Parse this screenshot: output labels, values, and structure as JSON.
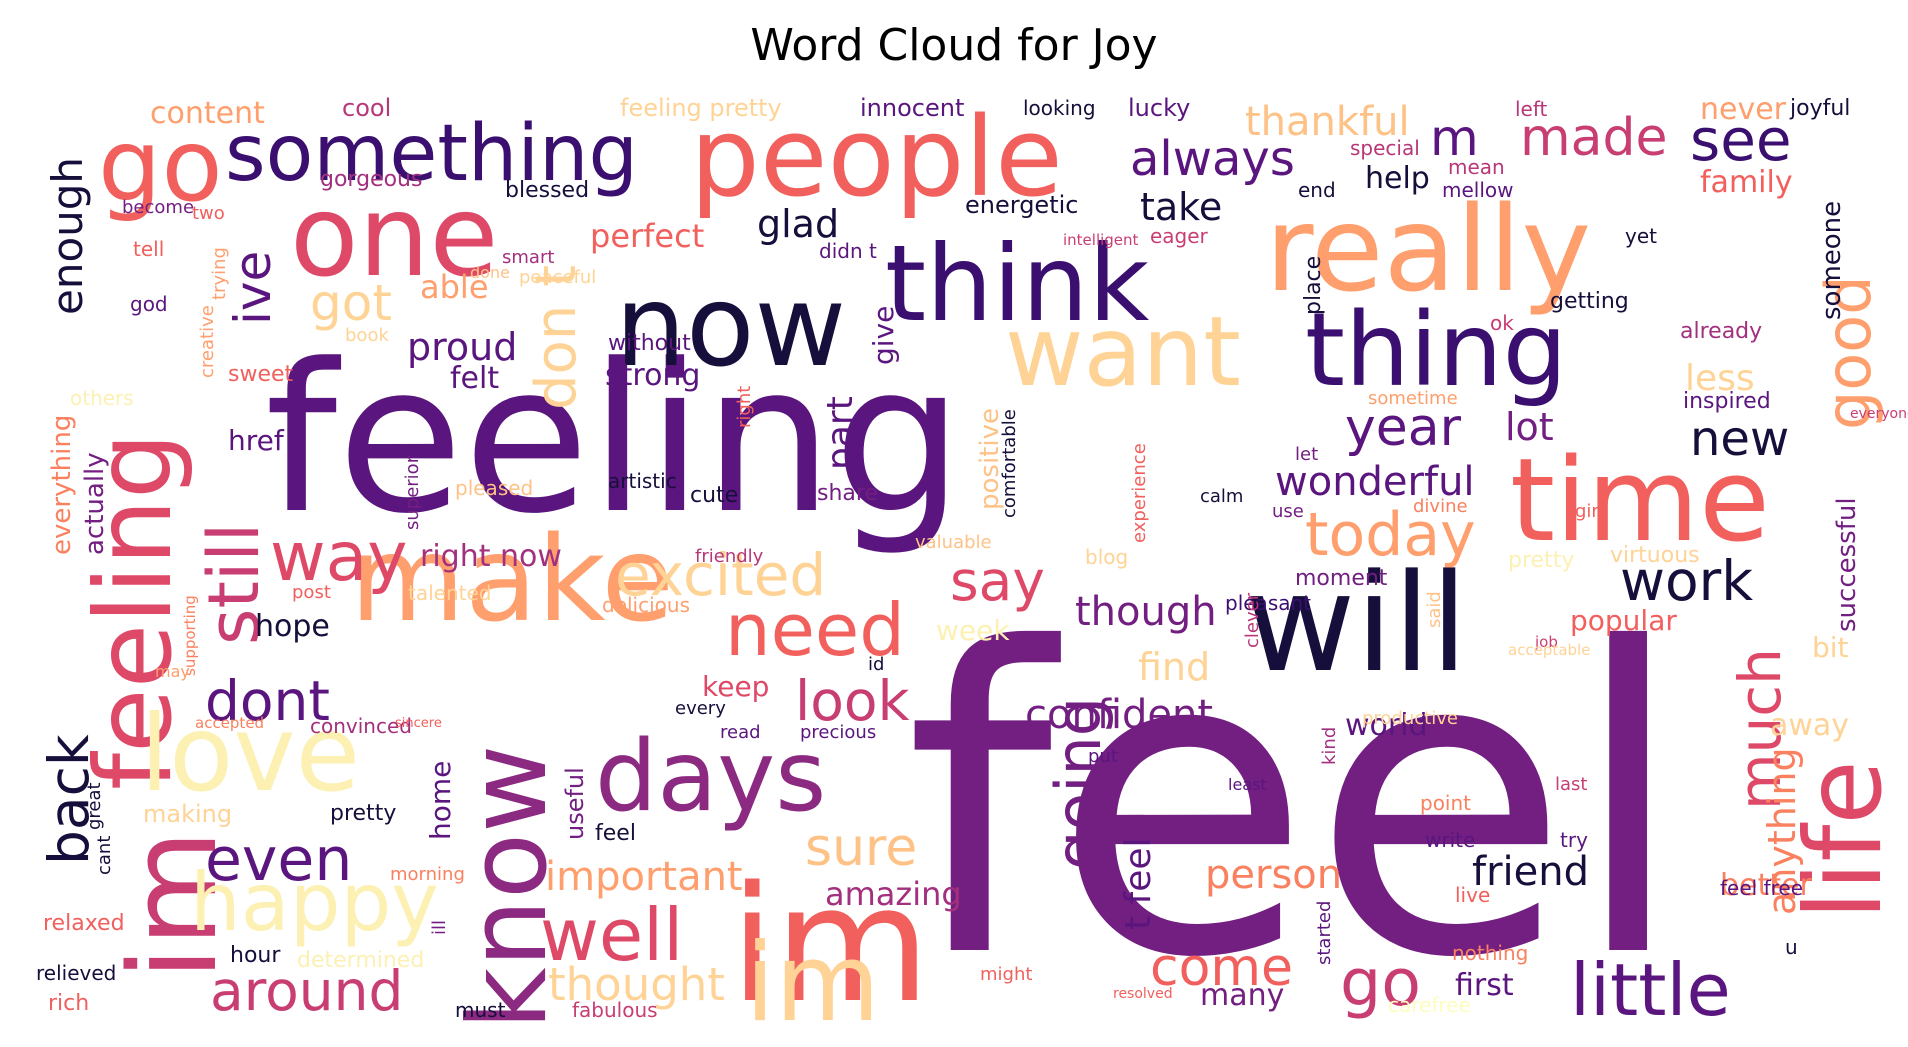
{
  "title": "Word Cloud for Joy",
  "palette": {
    "c1": "#160f3b",
    "c2": "#3b0f70",
    "c3": "#5a167e",
    "c4": "#721f81",
    "c5": "#8c2981",
    "c6": "#a3307e",
    "c7": "#b73779",
    "c8": "#c83e73",
    "c9": "#de4968",
    "c10": "#f1605d",
    "c11": "#f7705c",
    "c12": "#fa815f",
    "c13": "#fe9f6d",
    "c14": "#fec287",
    "c15": "#fed395",
    "c16": "#fcf0b3",
    "c17": "#fcfdbf"
  },
  "words": [
    {
      "text": "feel",
      "color": "c4"
    },
    {
      "text": "feeling",
      "color": "c3"
    },
    {
      "text": "im",
      "color": "c10"
    },
    {
      "text": "make",
      "color": "c13"
    },
    {
      "text": "will",
      "color": "c1"
    },
    {
      "text": "now",
      "color": "c1"
    },
    {
      "text": "think",
      "color": "c2"
    },
    {
      "text": "people",
      "color": "c10"
    },
    {
      "text": "really",
      "color": "c13"
    },
    {
      "text": "time",
      "color": "c10"
    },
    {
      "text": "want",
      "color": "c15"
    },
    {
      "text": "thing",
      "color": "c2"
    },
    {
      "text": "one",
      "color": "c9"
    },
    {
      "text": "something",
      "color": "c2"
    },
    {
      "text": "know",
      "color": "c5"
    },
    {
      "text": "feeling",
      "color": "c9"
    },
    {
      "text": "im",
      "color": "c8"
    },
    {
      "text": "go",
      "color": "c10"
    },
    {
      "text": "days",
      "color": "c5"
    },
    {
      "text": "love",
      "color": "c16"
    },
    {
      "text": "life",
      "color": "c9"
    },
    {
      "text": "im",
      "color": "c15"
    },
    {
      "text": "little",
      "color": "c3"
    },
    {
      "text": "happy",
      "color": "c16"
    },
    {
      "text": "still",
      "color": "c8"
    },
    {
      "text": "well",
      "color": "c9"
    },
    {
      "text": "go",
      "color": "c8"
    },
    {
      "text": "need",
      "color": "c10"
    },
    {
      "text": "excited",
      "color": "c15"
    },
    {
      "text": "today",
      "color": "c13"
    },
    {
      "text": "way",
      "color": "c9"
    },
    {
      "text": "even",
      "color": "c3"
    },
    {
      "text": "back",
      "color": "c1"
    },
    {
      "text": "going",
      "color": "c4"
    },
    {
      "text": "good",
      "color": "c13"
    },
    {
      "text": "much",
      "color": "c9"
    },
    {
      "text": "made",
      "color": "c8"
    },
    {
      "text": "see",
      "color": "c2"
    },
    {
      "text": "always",
      "color": "c3"
    },
    {
      "text": "say",
      "color": "c9"
    },
    {
      "text": "look",
      "color": "c8"
    },
    {
      "text": "dont",
      "color": "c3"
    },
    {
      "text": "around",
      "color": "c8"
    },
    {
      "text": "come",
      "color": "c10"
    },
    {
      "text": "sure",
      "color": "c14"
    },
    {
      "text": "work",
      "color": "c1"
    },
    {
      "text": "year",
      "color": "c3"
    },
    {
      "text": "don t",
      "color": "c15"
    },
    {
      "text": "ive",
      "color": "c3"
    },
    {
      "text": "got",
      "color": "c15"
    },
    {
      "text": "thought",
      "color": "c15"
    },
    {
      "text": "enough",
      "color": "c1"
    },
    {
      "text": "new",
      "color": "c1"
    },
    {
      "text": "m",
      "color": "c3"
    },
    {
      "text": "thankful",
      "color": "c14"
    },
    {
      "text": "confident",
      "color": "c4"
    },
    {
      "text": "important",
      "color": "c13"
    },
    {
      "text": "friend",
      "color": "c1"
    },
    {
      "text": "person",
      "color": "c12"
    },
    {
      "text": "wonderful",
      "color": "c3"
    },
    {
      "text": "though",
      "color": "c4"
    },
    {
      "text": "glad",
      "color": "c1"
    },
    {
      "text": "take",
      "color": "c1"
    },
    {
      "text": "lot",
      "color": "c4"
    },
    {
      "text": "proud",
      "color": "c3"
    },
    {
      "text": "find",
      "color": "c15"
    },
    {
      "text": "anything",
      "color": "c12"
    },
    {
      "text": "t feel",
      "color": "c3"
    },
    {
      "text": "part",
      "color": "c3"
    },
    {
      "text": "amazing",
      "color": "c6"
    },
    {
      "text": "someone",
      "color": "c1"
    },
    {
      "text": "successful",
      "color": "c4"
    },
    {
      "text": "less",
      "color": "c15"
    },
    {
      "text": "better",
      "color": "c12"
    },
    {
      "text": "first",
      "color": "c3"
    },
    {
      "text": "many",
      "color": "c4"
    },
    {
      "text": "content",
      "color": "c13"
    },
    {
      "text": "perfect",
      "color": "c10"
    },
    {
      "text": "able",
      "color": "c13"
    },
    {
      "text": "strong",
      "color": "c3"
    },
    {
      "text": "felt",
      "color": "c3"
    },
    {
      "text": "hope",
      "color": "c1"
    },
    {
      "text": "right now",
      "color": "c6"
    },
    {
      "text": "family",
      "color": "c10"
    },
    {
      "text": "never",
      "color": "c13"
    },
    {
      "text": "help",
      "color": "c1"
    },
    {
      "text": "everything",
      "color": "c12"
    },
    {
      "text": "actually",
      "color": "c4"
    },
    {
      "text": "keep",
      "color": "c9"
    },
    {
      "text": "week",
      "color": "c16"
    },
    {
      "text": "popular",
      "color": "c10"
    },
    {
      "text": "bit",
      "color": "c15"
    },
    {
      "text": "away",
      "color": "c15"
    },
    {
      "text": "world",
      "color": "c3"
    },
    {
      "text": "positive",
      "color": "c14"
    },
    {
      "text": "href",
      "color": "c3"
    },
    {
      "text": "home",
      "color": "c3"
    },
    {
      "text": "give",
      "color": "c3"
    },
    {
      "text": "feeling pretty",
      "color": "c15"
    },
    {
      "text": "innocent",
      "color": "c3"
    },
    {
      "text": "lucky",
      "color": "c3"
    },
    {
      "text": "cool",
      "color": "c7"
    },
    {
      "text": "blessed",
      "color": "c1"
    },
    {
      "text": "gorgeous",
      "color": "c6"
    },
    {
      "text": "energetic",
      "color": "c1"
    },
    {
      "text": "joyful",
      "color": "c1"
    },
    {
      "text": "left",
      "color": "c7"
    },
    {
      "text": "special",
      "color": "c7"
    },
    {
      "text": "mean",
      "color": "c7"
    },
    {
      "text": "end",
      "color": "c1"
    },
    {
      "text": "mellow",
      "color": "c3"
    },
    {
      "text": "looking",
      "color": "c1"
    },
    {
      "text": "eager",
      "color": "c8"
    },
    {
      "text": "intelligent",
      "color": "c8"
    },
    {
      "text": "yet",
      "color": "c1"
    },
    {
      "text": "place",
      "color": "c1"
    },
    {
      "text": "getting",
      "color": "c1"
    },
    {
      "text": "ok",
      "color": "c8"
    },
    {
      "text": "already",
      "color": "c6"
    },
    {
      "text": "inspired",
      "color": "c3"
    },
    {
      "text": "everyone",
      "color": "c8"
    },
    {
      "text": "sometime",
      "color": "c13"
    },
    {
      "text": "become",
      "color": "c4"
    },
    {
      "text": "two",
      "color": "c10"
    },
    {
      "text": "tell",
      "color": "c10"
    },
    {
      "text": "trying",
      "color": "c13"
    },
    {
      "text": "god",
      "color": "c3"
    },
    {
      "text": "creative",
      "color": "c13"
    },
    {
      "text": "smart",
      "color": "c6"
    },
    {
      "text": "peaceful",
      "color": "c15"
    },
    {
      "text": "didn t",
      "color": "c3"
    },
    {
      "text": "done",
      "color": "c14"
    },
    {
      "text": "book",
      "color": "c15"
    },
    {
      "text": "sweet",
      "color": "c10"
    },
    {
      "text": "others",
      "color": "c16"
    },
    {
      "text": "without",
      "color": "c3"
    },
    {
      "text": "superior",
      "color": "c4"
    },
    {
      "text": "pleased",
      "color": "c14"
    },
    {
      "text": "artistic",
      "color": "c1"
    },
    {
      "text": "cute",
      "color": "c1"
    },
    {
      "text": "share",
      "color": "c4"
    },
    {
      "text": "right",
      "color": "c10"
    },
    {
      "text": "comfortable",
      "color": "c1"
    },
    {
      "text": "experience",
      "color": "c10"
    },
    {
      "text": "calm",
      "color": "c1"
    },
    {
      "text": "use",
      "color": "c4"
    },
    {
      "text": "divine",
      "color": "c12"
    },
    {
      "text": "girl",
      "color": "c10"
    },
    {
      "text": "let",
      "color": "c4"
    },
    {
      "text": "moment",
      "color": "c4"
    },
    {
      "text": "said",
      "color": "c14"
    },
    {
      "text": "pretty",
      "color": "c16"
    },
    {
      "text": "virtuous",
      "color": "c15"
    },
    {
      "text": "friendly",
      "color": "c7"
    },
    {
      "text": "valuable",
      "color": "c14"
    },
    {
      "text": "blog",
      "color": "c15"
    },
    {
      "text": "talented",
      "color": "c15"
    },
    {
      "text": "delicious",
      "color": "c13"
    },
    {
      "text": "post",
      "color": "c10"
    },
    {
      "text": "pleasant",
      "color": "c2"
    },
    {
      "text": "clever",
      "color": "c7"
    },
    {
      "text": "job",
      "color": "c8"
    },
    {
      "text": "supporting",
      "color": "c12"
    },
    {
      "text": "may",
      "color": "c13"
    },
    {
      "text": "acceptable",
      "color": "c15"
    },
    {
      "text": "id",
      "color": "c1"
    },
    {
      "text": "every",
      "color": "c1"
    },
    {
      "text": "read",
      "color": "c3"
    },
    {
      "text": "precious",
      "color": "c3"
    },
    {
      "text": "productive",
      "color": "c15"
    },
    {
      "text": "kind",
      "color": "c6"
    },
    {
      "text": "put",
      "color": "c3"
    },
    {
      "text": "least",
      "color": "c3"
    },
    {
      "text": "last",
      "color": "c8"
    },
    {
      "text": "point",
      "color": "c12"
    },
    {
      "text": "try",
      "color": "c3"
    },
    {
      "text": "write",
      "color": "c3"
    },
    {
      "text": "feel free",
      "color": "c3"
    },
    {
      "text": "live",
      "color": "c10"
    },
    {
      "text": "accepted",
      "color": "c12"
    },
    {
      "text": "convinced",
      "color": "c6"
    },
    {
      "text": "sincere",
      "color": "c10"
    },
    {
      "text": "useful",
      "color": "c4"
    },
    {
      "text": "making",
      "color": "c15"
    },
    {
      "text": "pretty",
      "color": "c1"
    },
    {
      "text": "feel",
      "color": "c1"
    },
    {
      "text": "great",
      "color": "c1"
    },
    {
      "text": "cant",
      "color": "c1"
    },
    {
      "text": "morning",
      "color": "c12"
    },
    {
      "text": "ill",
      "color": "c4"
    },
    {
      "text": "relaxed",
      "color": "c10"
    },
    {
      "text": "hour",
      "color": "c1"
    },
    {
      "text": "determined",
      "color": "c16"
    },
    {
      "text": "relieved",
      "color": "c1"
    },
    {
      "text": "rich",
      "color": "c10"
    },
    {
      "text": "must",
      "color": "c1"
    },
    {
      "text": "fabulous",
      "color": "c8"
    },
    {
      "text": "might",
      "color": "c10"
    },
    {
      "text": "resolved",
      "color": "c10"
    },
    {
      "text": "started",
      "color": "c3"
    },
    {
      "text": "nothing",
      "color": "c12"
    },
    {
      "text": "carefree",
      "color": "c17"
    },
    {
      "text": "u",
      "color": "c1"
    }
  ]
}
